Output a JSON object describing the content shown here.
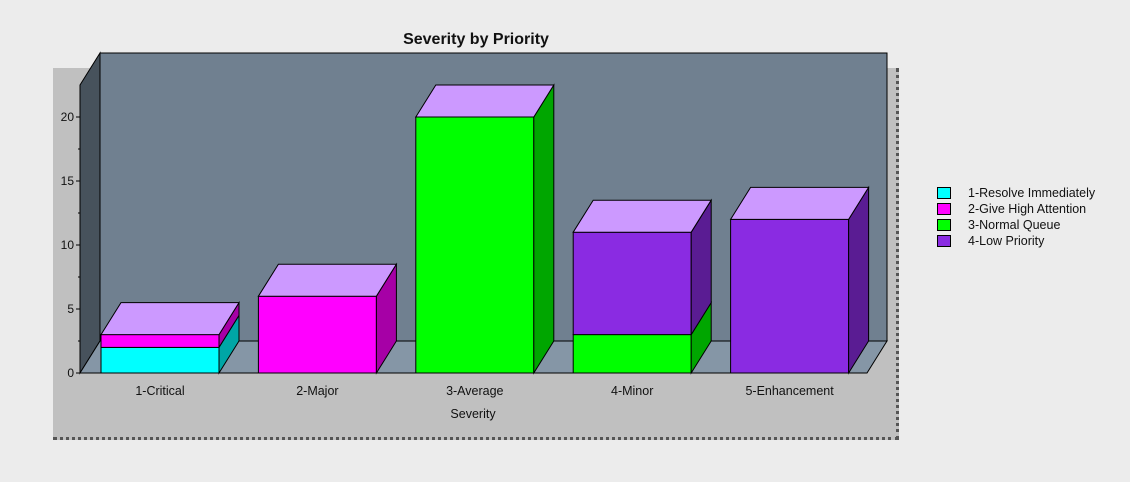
{
  "chart_data": {
    "type": "bar",
    "stacked": true,
    "title": "Severity by Priority",
    "xlabel": "Severity",
    "ylabel": "",
    "ylim": [
      0,
      20
    ],
    "yticks": [
      0,
      5,
      10,
      15,
      20
    ],
    "categories": [
      "1-Critical",
      "2-Major",
      "3-Average",
      "4-Minor",
      "5-Enhancement"
    ],
    "series": [
      {
        "name": "1-Resolve Immediately",
        "color": "#00ffff",
        "values": [
          2,
          0,
          0,
          0,
          0
        ]
      },
      {
        "name": "2-Give High Attention",
        "color": "#ff00ff",
        "values": [
          1,
          6,
          0,
          0,
          0
        ]
      },
      {
        "name": "3-Normal Queue",
        "color": "#00ff00",
        "values": [
          0,
          0,
          20,
          3,
          0
        ]
      },
      {
        "name": "4-Low Priority",
        "color": "#8a2be2",
        "values": [
          0,
          0,
          0,
          8,
          12
        ]
      }
    ],
    "legend_position": "right",
    "grid": false,
    "three_d": true
  }
}
